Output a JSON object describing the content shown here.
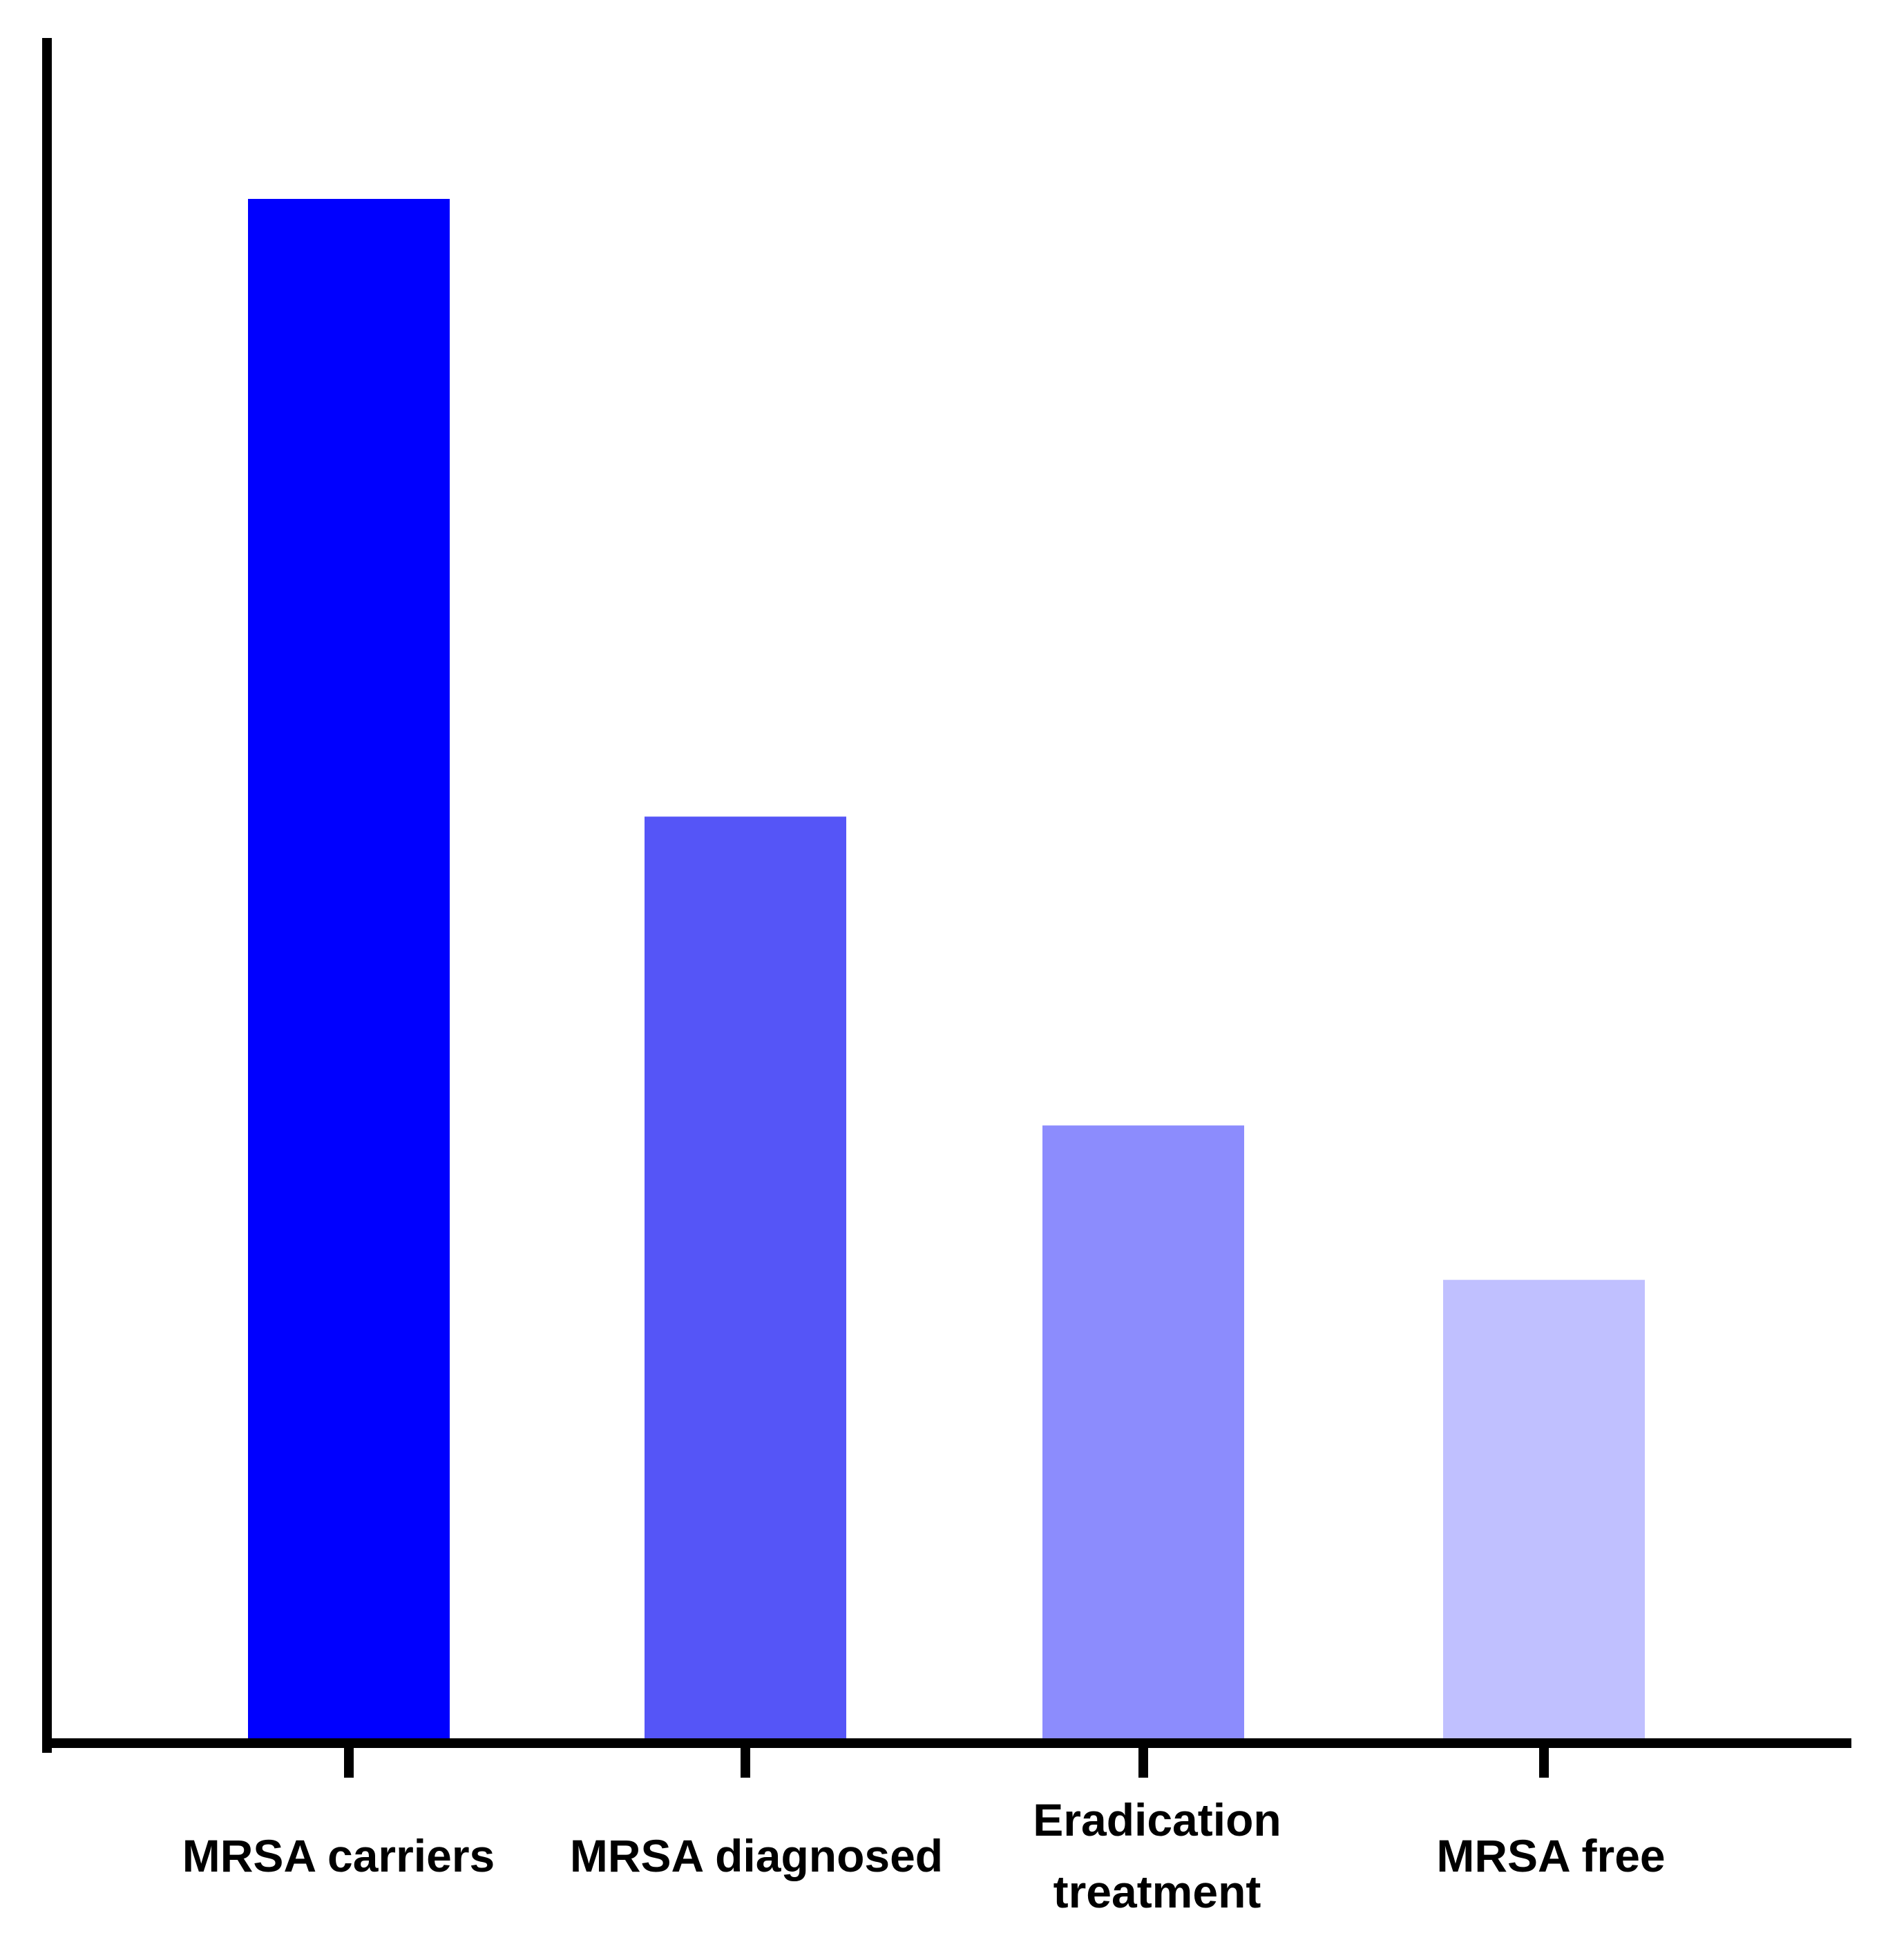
{
  "chart_data": {
    "type": "bar",
    "title": "",
    "xlabel": "",
    "ylabel": "",
    "categories": [
      [
        "MRSA carriers"
      ],
      [
        "MRSA diagnosed"
      ],
      [
        "Eradication",
        "treatment"
      ],
      [
        "MRSA free"
      ]
    ],
    "values": [
      100,
      60,
      40,
      30
    ],
    "ylim": [
      0,
      100
    ],
    "bar_colors": [
      "#0000ff",
      "#5555f7",
      "#8c8cfd",
      "#c0c0ff"
    ],
    "axis_color": "#000000",
    "grid": false,
    "legend": "none"
  }
}
